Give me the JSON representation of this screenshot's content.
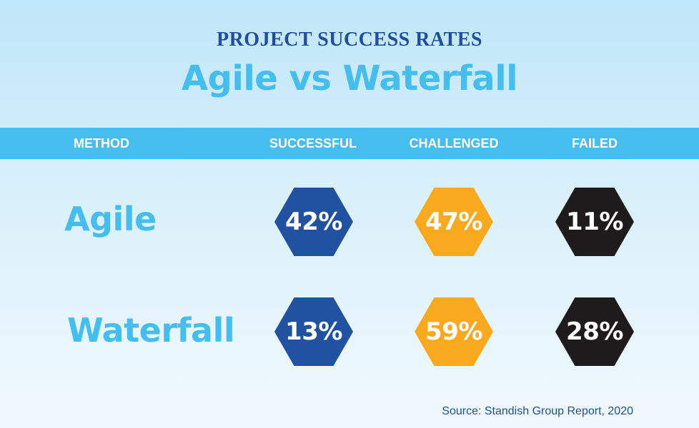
{
  "supertitle": "PROJECT SUCCESS RATES",
  "title": "Agile vs Waterfall",
  "source": "Source: Standish Group Report, 2020",
  "colors": {
    "successful": "#2151a1",
    "challenged": "#f8a91d",
    "failed": "#1e1b1c",
    "accent": "#45bdee"
  },
  "chart_data": {
    "type": "table",
    "title": "Agile vs Waterfall",
    "columns": [
      "METHOD",
      "SUCCESSFUL",
      "CHALLENGED",
      "FAILED"
    ],
    "rows": [
      {
        "method": "Agile",
        "successful": "42%",
        "challenged": "47%",
        "failed": "11%"
      },
      {
        "method": "Waterfall",
        "successful": "13%",
        "challenged": "59%",
        "failed": "28%"
      }
    ]
  }
}
